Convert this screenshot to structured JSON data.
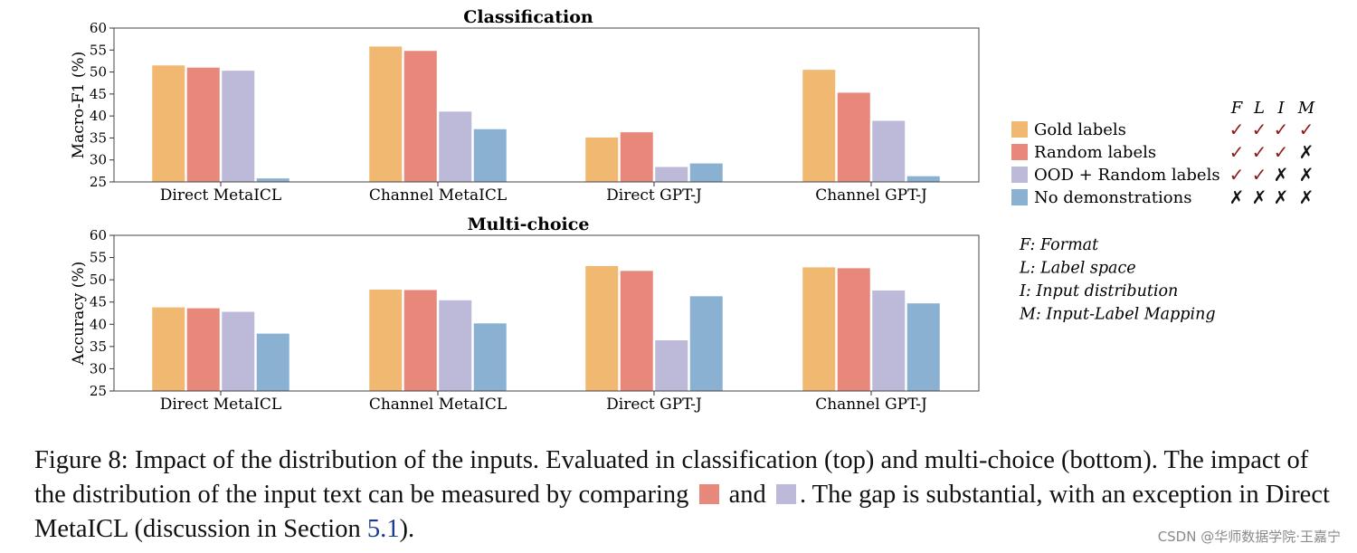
{
  "chart_data": [
    {
      "type": "bar",
      "title": "Classification",
      "ylabel": "Macro-F1 (%)",
      "xlabel": "",
      "ylim": [
        25,
        60
      ],
      "yticks": [
        25,
        30,
        35,
        40,
        45,
        50,
        55,
        60
      ],
      "categories": [
        "Direct MetaICL",
        "Channel MetaICL",
        "Direct GPT-J",
        "Channel GPT-J"
      ],
      "series": [
        {
          "name": "Gold labels",
          "color": "#F1B872",
          "values": [
            51.5,
            55.8,
            35.1,
            50.5
          ]
        },
        {
          "name": "Random labels",
          "color": "#E8887A",
          "values": [
            51.0,
            54.8,
            36.3,
            45.3
          ]
        },
        {
          "name": "OOD + Random labels",
          "color": "#BDBAD9",
          "values": [
            50.3,
            41.0,
            28.4,
            38.9
          ]
        },
        {
          "name": "No demonstrations",
          "color": "#8AB0D2",
          "values": [
            25.8,
            37.0,
            29.2,
            26.3
          ]
        }
      ]
    },
    {
      "type": "bar",
      "title": "Multi-choice",
      "ylabel": "Accuracy (%)",
      "xlabel": "",
      "ylim": [
        25,
        60
      ],
      "yticks": [
        25,
        30,
        35,
        40,
        45,
        50,
        55,
        60
      ],
      "categories": [
        "Direct MetaICL",
        "Channel MetaICL",
        "Direct GPT-J",
        "Channel GPT-J"
      ],
      "series": [
        {
          "name": "Gold labels",
          "color": "#F1B872",
          "values": [
            43.8,
            47.8,
            53.1,
            52.8
          ]
        },
        {
          "name": "Random labels",
          "color": "#E8887A",
          "values": [
            43.6,
            47.7,
            52.0,
            52.6
          ]
        },
        {
          "name": "OOD + Random labels",
          "color": "#BDBAD9",
          "values": [
            42.8,
            45.4,
            36.4,
            47.6
          ]
        },
        {
          "name": "No demonstrations",
          "color": "#8AB0D2",
          "values": [
            37.9,
            40.2,
            46.3,
            44.7
          ]
        }
      ]
    }
  ],
  "legend": {
    "headers": [
      "F",
      "L",
      "I",
      "M"
    ],
    "rows": [
      {
        "label": "Gold labels",
        "marks": [
          "✓",
          "✓",
          "✓",
          "✓"
        ]
      },
      {
        "label": "Random labels",
        "marks": [
          "✓",
          "✓",
          "✓",
          "✗"
        ]
      },
      {
        "label": "OOD + Random labels",
        "marks": [
          "✓",
          "✓",
          "✗",
          "✗"
        ]
      },
      {
        "label": "No demonstrations",
        "marks": [
          "✗",
          "✗",
          "✗",
          "✗"
        ]
      }
    ],
    "check_color": "#8B1A1A",
    "cross_color": "#111111"
  },
  "key": [
    "F: Format",
    "L: Label space",
    "I: Input distribution",
    "M: Input-Label Mapping"
  ],
  "caption": {
    "part1": "Figure 8: Impact of the distribution of the inputs. Evaluated in classification (top) and multi-choice (bottom). The impact of the distribution of the input text can be measured by comparing ",
    "part2": " and ",
    "part3": ". The gap is substantial, with an exception in Direct MetaICL (discussion in Section ",
    "ref": "5.1",
    "part4": ")."
  },
  "watermark": "CSDN @华师数据学院·王嘉宁"
}
